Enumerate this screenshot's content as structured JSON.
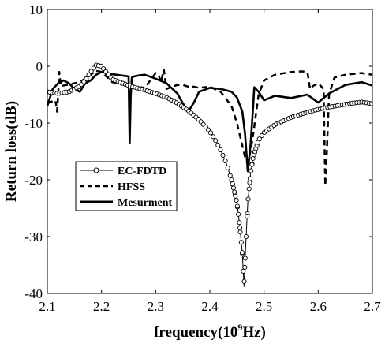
{
  "chart_data": {
    "type": "line",
    "xlabel_main": "frequency(10",
    "xlabel_exp": "9",
    "xlabel_unit": "Hz)",
    "ylabel": "Return loss(dB)",
    "xlim": [
      2.1,
      2.7
    ],
    "ylim": [
      -40,
      10
    ],
    "xticks": [
      2.1,
      2.2,
      2.3,
      2.4,
      2.5,
      2.6,
      2.7
    ],
    "xtick_labels": [
      "2.1",
      "2.2",
      "2.3",
      "2.4",
      "2.5",
      "2.6",
      "2.7"
    ],
    "yticks": [
      10,
      0,
      -10,
      -20,
      -30,
      -40
    ],
    "ytick_labels": [
      "10",
      "0",
      "-10",
      "-20",
      "-30",
      "-40"
    ],
    "grid": false,
    "legend_position": "left-middle",
    "series": [
      {
        "name": "EC-FDTD",
        "style": "solid-circle",
        "color": "#000000",
        "x": [
          2.1,
          2.12,
          2.14,
          2.16,
          2.17,
          2.18,
          2.19,
          2.2,
          2.21,
          2.22,
          2.25,
          2.28,
          2.3,
          2.32,
          2.34,
          2.36,
          2.38,
          2.4,
          2.41,
          2.42,
          2.43,
          2.44,
          2.45,
          2.455,
          2.46,
          2.463,
          2.466,
          2.47,
          2.475,
          2.48,
          2.49,
          2.5,
          2.52,
          2.55,
          2.58,
          2.6,
          2.62,
          2.65,
          2.68,
          2.7
        ],
        "y": [
          -4.5,
          -4.8,
          -4.5,
          -3.5,
          -2.5,
          -1.0,
          0.2,
          0.0,
          -1.2,
          -2.3,
          -3.4,
          -4.2,
          -4.8,
          -5.5,
          -6.5,
          -7.8,
          -9.4,
          -11.5,
          -13.0,
          -14.8,
          -17.0,
          -20.0,
          -24.0,
          -28.0,
          -33.0,
          -38.8,
          -32.0,
          -24.0,
          -19.0,
          -16.0,
          -13.0,
          -11.7,
          -10.3,
          -9.0,
          -8.1,
          -7.6,
          -7.2,
          -6.7,
          -6.3,
          -6.6
        ]
      },
      {
        "name": "HFSS",
        "style": "dashed",
        "color": "#000000",
        "x": [
          2.1,
          2.115,
          2.118,
          2.12,
          2.122,
          2.125,
          2.14,
          2.16,
          2.18,
          2.19,
          2.2,
          2.22,
          2.25,
          2.28,
          2.3,
          2.305,
          2.31,
          2.315,
          2.32,
          2.33,
          2.34,
          2.35,
          2.36,
          2.37,
          2.38,
          2.4,
          2.42,
          2.44,
          2.45,
          2.46,
          2.465,
          2.47,
          2.475,
          2.48,
          2.49,
          2.5,
          2.52,
          2.55,
          2.57,
          2.58,
          2.585,
          2.59,
          2.6,
          2.61,
          2.613,
          2.616,
          2.62,
          2.625,
          2.63,
          2.65,
          2.68,
          2.7
        ],
        "y": [
          -6.5,
          -6.0,
          -8.0,
          -5.0,
          -1.0,
          -3.5,
          -3.2,
          -2.8,
          -1.5,
          -0.8,
          -1.0,
          -2.8,
          -3.5,
          -3.8,
          -1.2,
          -1.5,
          -2.8,
          -0.6,
          -4.0,
          -3.6,
          -3.3,
          -3.3,
          -3.6,
          -3.6,
          -3.8,
          -3.6,
          -4.5,
          -7.0,
          -10.0,
          -14.0,
          -16.0,
          -17.0,
          -15.0,
          -12.0,
          -5.0,
          -2.5,
          -1.5,
          -1.0,
          -0.9,
          -1.0,
          -4.0,
          -3.5,
          -3.0,
          -4.0,
          -21.0,
          -15.0,
          -5.0,
          -3.5,
          -2.0,
          -1.5,
          -1.2,
          -1.5
        ]
      },
      {
        "name": "Mesurment",
        "style": "solid-thick",
        "color": "#000000",
        "x": [
          2.1,
          2.11,
          2.12,
          2.13,
          2.14,
          2.15,
          2.16,
          2.17,
          2.18,
          2.19,
          2.2,
          2.22,
          2.25,
          2.252,
          2.254,
          2.256,
          2.26,
          2.27,
          2.28,
          2.3,
          2.32,
          2.34,
          2.35,
          2.36,
          2.37,
          2.38,
          2.4,
          2.42,
          2.44,
          2.45,
          2.46,
          2.465,
          2.47,
          2.475,
          2.48,
          2.482,
          2.49,
          2.5,
          2.52,
          2.55,
          2.58,
          2.6,
          2.62,
          2.65,
          2.68,
          2.7
        ],
        "y": [
          -7.0,
          -4.0,
          -3.0,
          -2.5,
          -3.0,
          -4.0,
          -4.5,
          -3.0,
          -2.5,
          -1.5,
          -1.0,
          -1.4,
          -1.8,
          -13.5,
          -5.0,
          -2.0,
          -1.8,
          -1.6,
          -1.5,
          -2.2,
          -3.0,
          -4.8,
          -6.5,
          -8.0,
          -6.5,
          -4.5,
          -3.8,
          -4.0,
          -4.5,
          -5.5,
          -8.0,
          -12.0,
          -18.5,
          -14.0,
          -7.0,
          -3.7,
          -4.5,
          -6.0,
          -5.2,
          -5.6,
          -5.0,
          -6.4,
          -4.8,
          -3.3,
          -2.8,
          -3.4
        ]
      }
    ]
  }
}
